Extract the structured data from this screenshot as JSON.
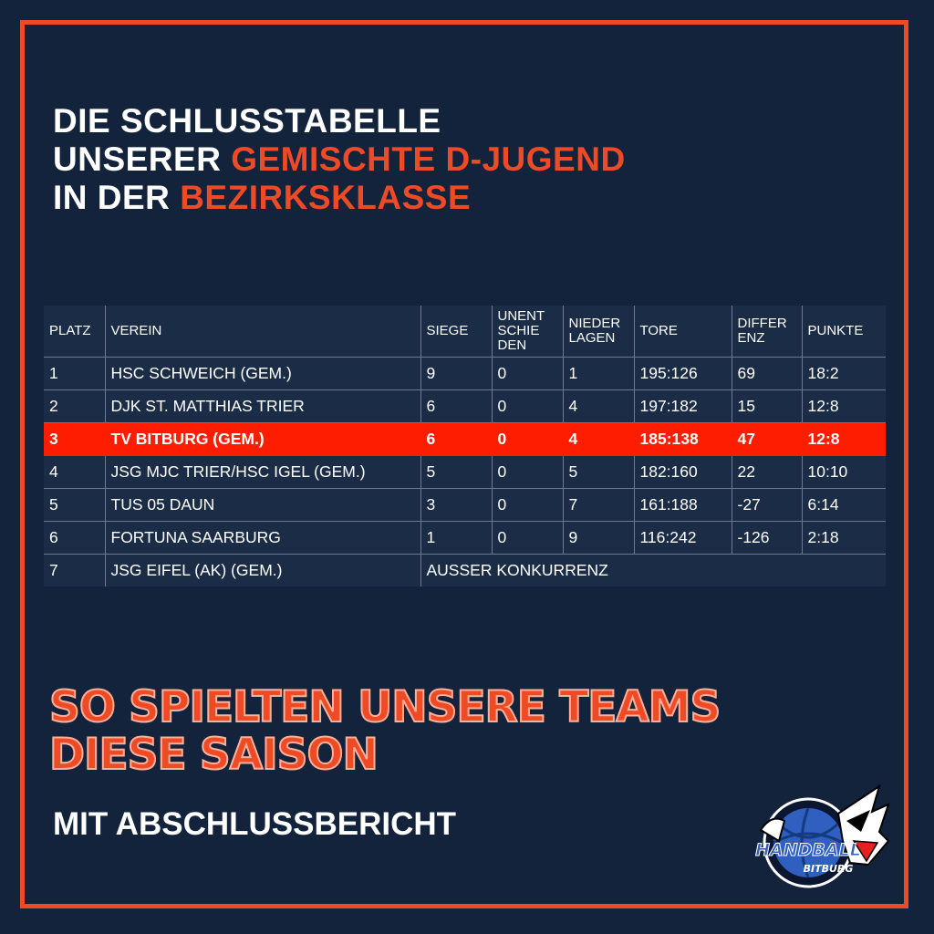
{
  "title": {
    "line1": "Die Schlusstabelle",
    "line2_plain": "unserer ",
    "line2_accent": "Gemischte D-Jugend",
    "line3_plain": "in der ",
    "line3_accent": "Bezirksklasse"
  },
  "table": {
    "headers": {
      "platz": "PLATZ",
      "verein": "VEREIN",
      "siege": "SIEGE",
      "unentschieden": "UNENT SCHIE DEN",
      "niederlagen": "NIEDER LAGEN",
      "tore": "TORE",
      "differenz": "DIFFER ENZ",
      "punkte": "PUNKTE"
    },
    "rows": [
      {
        "platz": "1",
        "verein": "HSC Schweich (Gem.)",
        "siege": "9",
        "unent": "0",
        "nieder": "1",
        "tore": "195:126",
        "diff": "69",
        "punkte": "18:2"
      },
      {
        "platz": "2",
        "verein": "DJK St. Matthias Trier",
        "siege": "6",
        "unent": "0",
        "nieder": "4",
        "tore": "197:182",
        "diff": "15",
        "punkte": "12:8"
      },
      {
        "platz": "3",
        "verein": "TV Bitburg (Gem.)",
        "siege": "6",
        "unent": "0",
        "nieder": "4",
        "tore": "185:138",
        "diff": "47",
        "punkte": "12:8"
      },
      {
        "platz": "4",
        "verein": "JSG MJC Trier/HSC Igel (Gem.)",
        "siege": "5",
        "unent": "0",
        "nieder": "5",
        "tore": "182:160",
        "diff": "22",
        "punkte": "10:10"
      },
      {
        "platz": "5",
        "verein": "TuS 05 Daun",
        "siege": "3",
        "unent": "0",
        "nieder": "7",
        "tore": "161:188",
        "diff": "-27",
        "punkte": "6:14"
      },
      {
        "platz": "6",
        "verein": "Fortuna Saarburg",
        "siege": "1",
        "unent": "0",
        "nieder": "9",
        "tore": "116:242",
        "diff": "-126",
        "punkte": "2:18"
      }
    ],
    "last_row": {
      "platz": "7",
      "verein": "JSG Eifel (AK) (Gem.)",
      "note": "Außer Konkurrenz"
    }
  },
  "subtitle": {
    "line1": "So spielten unsere Teams",
    "line2": "diese Saison"
  },
  "subtitle2": "Mit Abschlussbericht",
  "logo": {
    "icon": "handball-bitburg-logo",
    "text_main": "HANDBALL",
    "text_sub": "BITBURG"
  },
  "colors": {
    "background": "#13233c",
    "accent": "#ee4a26",
    "highlight": "#ff1d00"
  }
}
